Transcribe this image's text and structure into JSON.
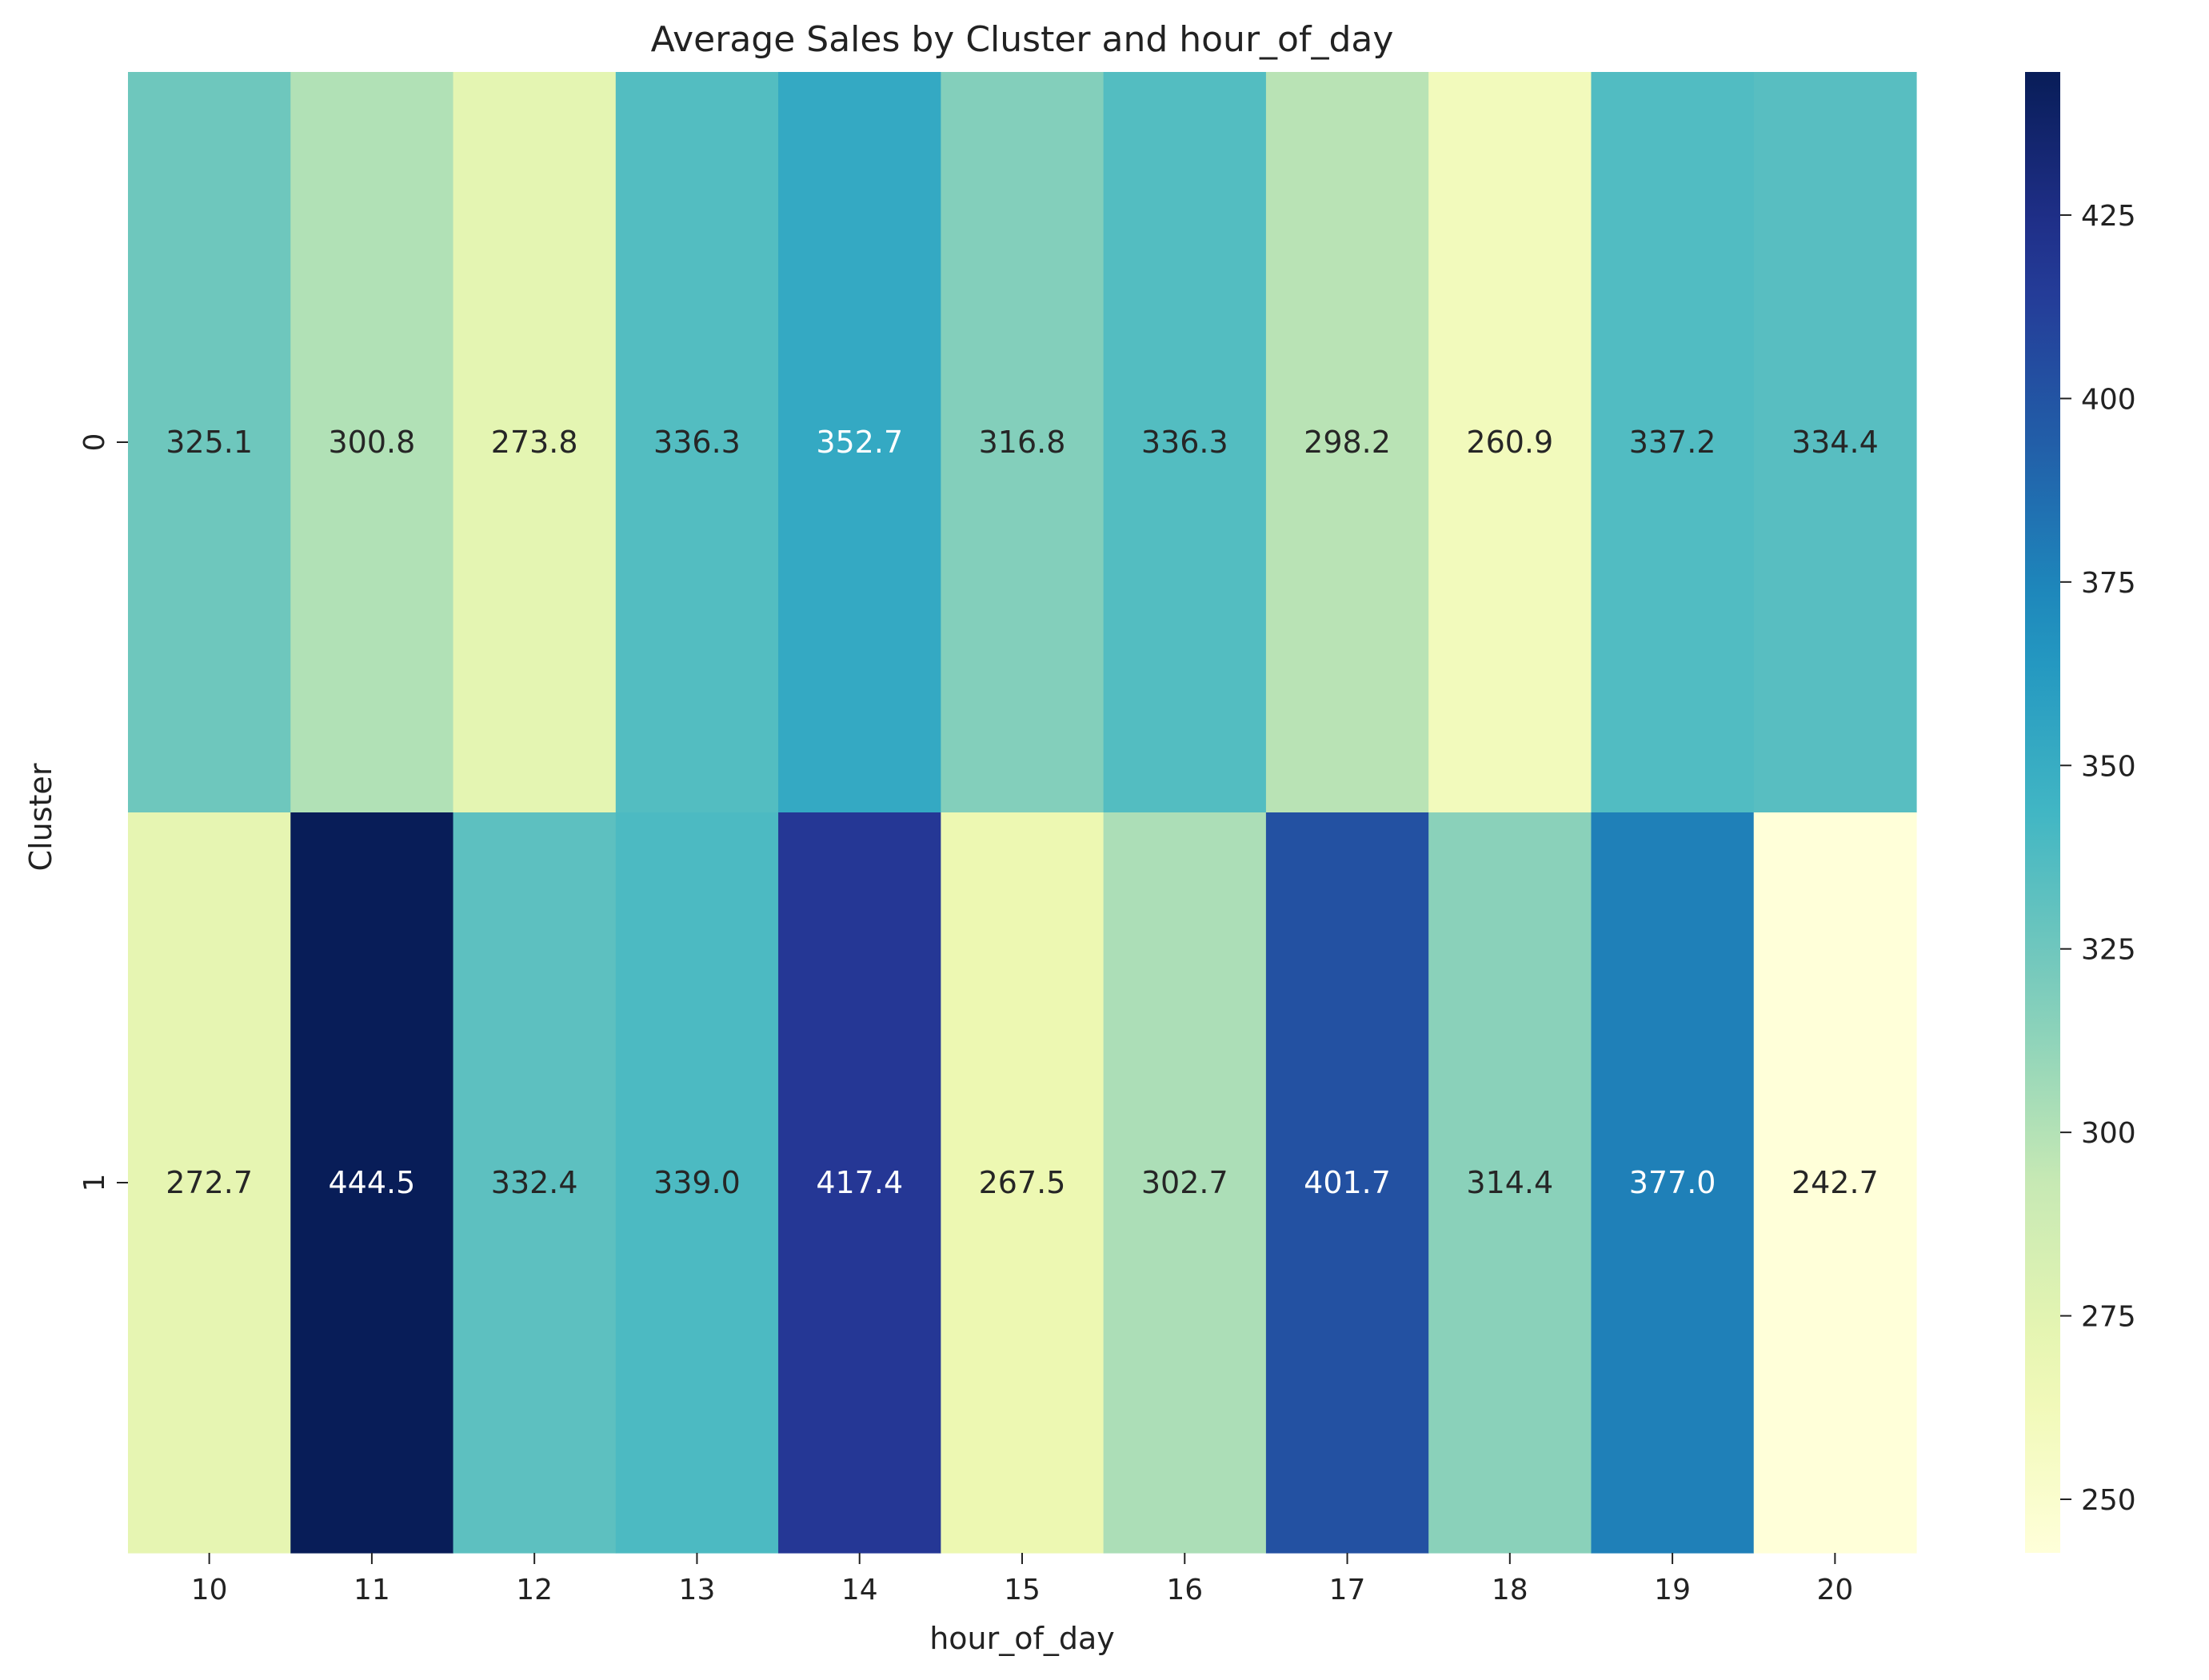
{
  "chart_data": {
    "type": "heatmap",
    "title": "Average Sales by Cluster and hour_of_day",
    "xlabel": "hour_of_day",
    "ylabel": "Cluster",
    "x_categories": [
      "10",
      "11",
      "12",
      "13",
      "14",
      "15",
      "16",
      "17",
      "18",
      "19",
      "20"
    ],
    "y_categories": [
      "0",
      "1"
    ],
    "values": [
      [
        325.1,
        300.8,
        273.8,
        336.3,
        352.7,
        316.8,
        336.3,
        298.2,
        260.9,
        337.2,
        334.4
      ],
      [
        272.7,
        444.5,
        332.4,
        339.0,
        417.4,
        267.5,
        302.7,
        401.7,
        314.4,
        377.0,
        242.7
      ]
    ],
    "value_format": "one decimal place",
    "colormap": "YlGnBu",
    "color_range": [
      242.7,
      444.5
    ],
    "colorbar": {
      "ticks": [
        250,
        275,
        300,
        325,
        350,
        375,
        400,
        425
      ],
      "tick_labels": [
        "250",
        "275",
        "300",
        "325",
        "350",
        "375",
        "400",
        "425"
      ]
    },
    "legend_position": "right colorbar",
    "grid": false
  }
}
